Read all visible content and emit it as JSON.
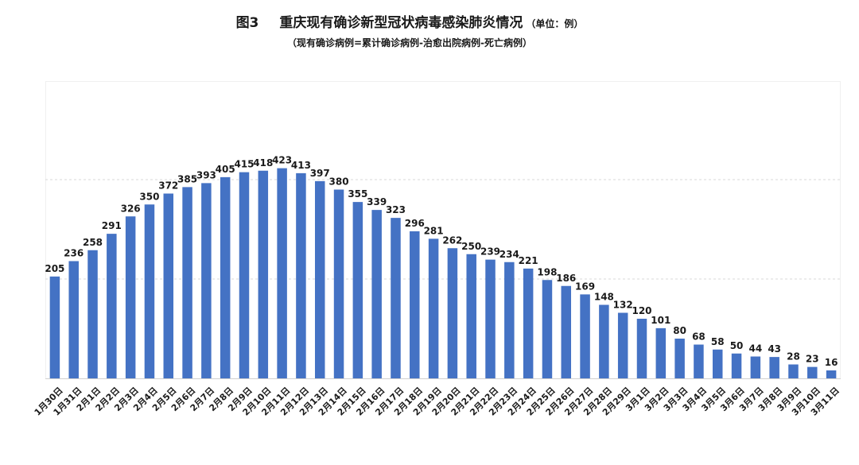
{
  "header": {
    "figure_no": "图3",
    "title": "重庆现有确诊新型冠状病毒感染肺炎情况",
    "unit": "（单位：例）",
    "subtitle": "（现有确诊病例=累计确诊病例-治愈出院病例-死亡病例）"
  },
  "chart_data": {
    "type": "bar",
    "title": "重庆现有确诊新型冠状病毒感染肺炎情况",
    "subtitle": "（现有确诊病例=累计确诊病例-治愈出院病例-死亡病例）",
    "unit": "单位：例",
    "xlabel": "",
    "ylabel": "",
    "ylim": [
      0,
      600
    ],
    "grid": true,
    "bar_color": "#4472C4",
    "categories": [
      "1月30日",
      "1月31日",
      "2月1日",
      "2月2日",
      "2月3日",
      "2月4日",
      "2月5日",
      "2月6日",
      "2月7日",
      "2月8日",
      "2月9日",
      "2月10日",
      "2月11日",
      "2月12日",
      "2月13日",
      "2月14日",
      "2月15日",
      "2月16日",
      "2月17日",
      "2月18日",
      "2月19日",
      "2月20日",
      "2月21日",
      "2月22日",
      "2月23日",
      "2月24日",
      "2月25日",
      "2月26日",
      "2月27日",
      "2月28日",
      "2月29日",
      "3月1日",
      "3月2日",
      "3月3日",
      "3月4日",
      "3月5日",
      "3月6日",
      "3月7日",
      "3月8日",
      "3月9日",
      "3月10日",
      "3月11日"
    ],
    "values": [
      205,
      236,
      258,
      291,
      326,
      350,
      372,
      385,
      393,
      405,
      415,
      418,
      423,
      413,
      397,
      380,
      355,
      339,
      323,
      296,
      281,
      262,
      250,
      239,
      234,
      221,
      198,
      186,
      169,
      148,
      132,
      120,
      101,
      80,
      68,
      58,
      50,
      44,
      43,
      28,
      23,
      16
    ]
  }
}
